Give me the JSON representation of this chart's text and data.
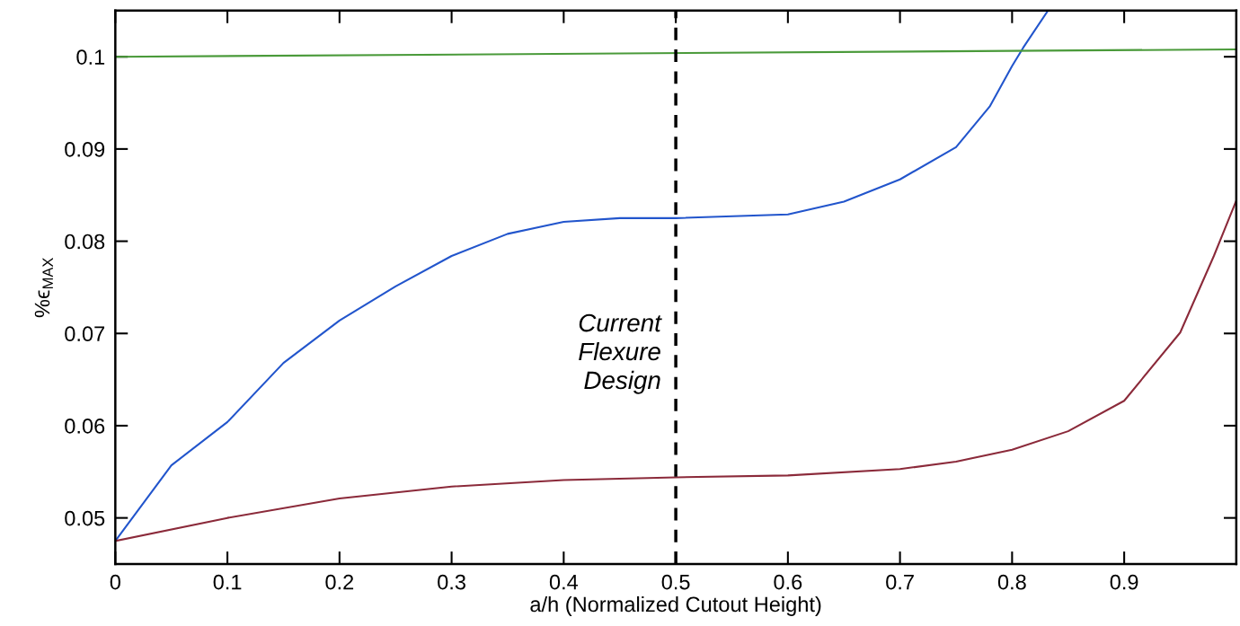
{
  "chart_data": {
    "type": "line",
    "xlabel": "a/h (Normalized Cutout Height)",
    "ylabel": "%ϵ$_{MAX}$",
    "xlim": [
      0,
      1
    ],
    "ylim": [
      0.045,
      0.105
    ],
    "xticks": [
      0,
      0.1,
      0.2,
      0.3,
      0.4,
      0.5,
      0.6,
      0.7,
      0.8,
      0.9
    ],
    "yticks": [
      0.05,
      0.06,
      0.07,
      0.08,
      0.09,
      0.1
    ],
    "grid": false,
    "marker": "none",
    "line_style": "solid",
    "series": [
      {
        "color": "#2255cc",
        "x": [
          0,
          0.05,
          0.1,
          0.15,
          0.2,
          0.25,
          0.3,
          0.35,
          0.4,
          0.45,
          0.5,
          0.6,
          0.65,
          0.7,
          0.75,
          0.78,
          0.8,
          0.81,
          0.832
        ],
        "values": [
          0.0475,
          0.0557,
          0.0604,
          0.0668,
          0.0714,
          0.0751,
          0.0784,
          0.0808,
          0.0821,
          0.0825,
          0.0825,
          0.0829,
          0.0843,
          0.0867,
          0.0902,
          0.0946,
          0.099,
          0.101,
          0.105
        ]
      },
      {
        "color": "#8b2a3a",
        "x": [
          0,
          0.1,
          0.2,
          0.3,
          0.4,
          0.5,
          0.6,
          0.7,
          0.75,
          0.8,
          0.85,
          0.9,
          0.95,
          0.98,
          1.0
        ],
        "values": [
          0.0475,
          0.05,
          0.0521,
          0.0534,
          0.0541,
          0.0544,
          0.0546,
          0.0553,
          0.0561,
          0.0574,
          0.0594,
          0.0627,
          0.0701,
          0.0784,
          0.0844
        ]
      },
      {
        "color": "#4a9a3a",
        "x": [
          0,
          1.0
        ],
        "values": [
          0.1,
          0.1008
        ]
      }
    ],
    "ref_lines": [
      {
        "axis": "x",
        "value": 0.5,
        "color": "#000000",
        "line_style": "dashed"
      }
    ],
    "annotations": [
      "Current\nFlexure\nDesign"
    ]
  }
}
